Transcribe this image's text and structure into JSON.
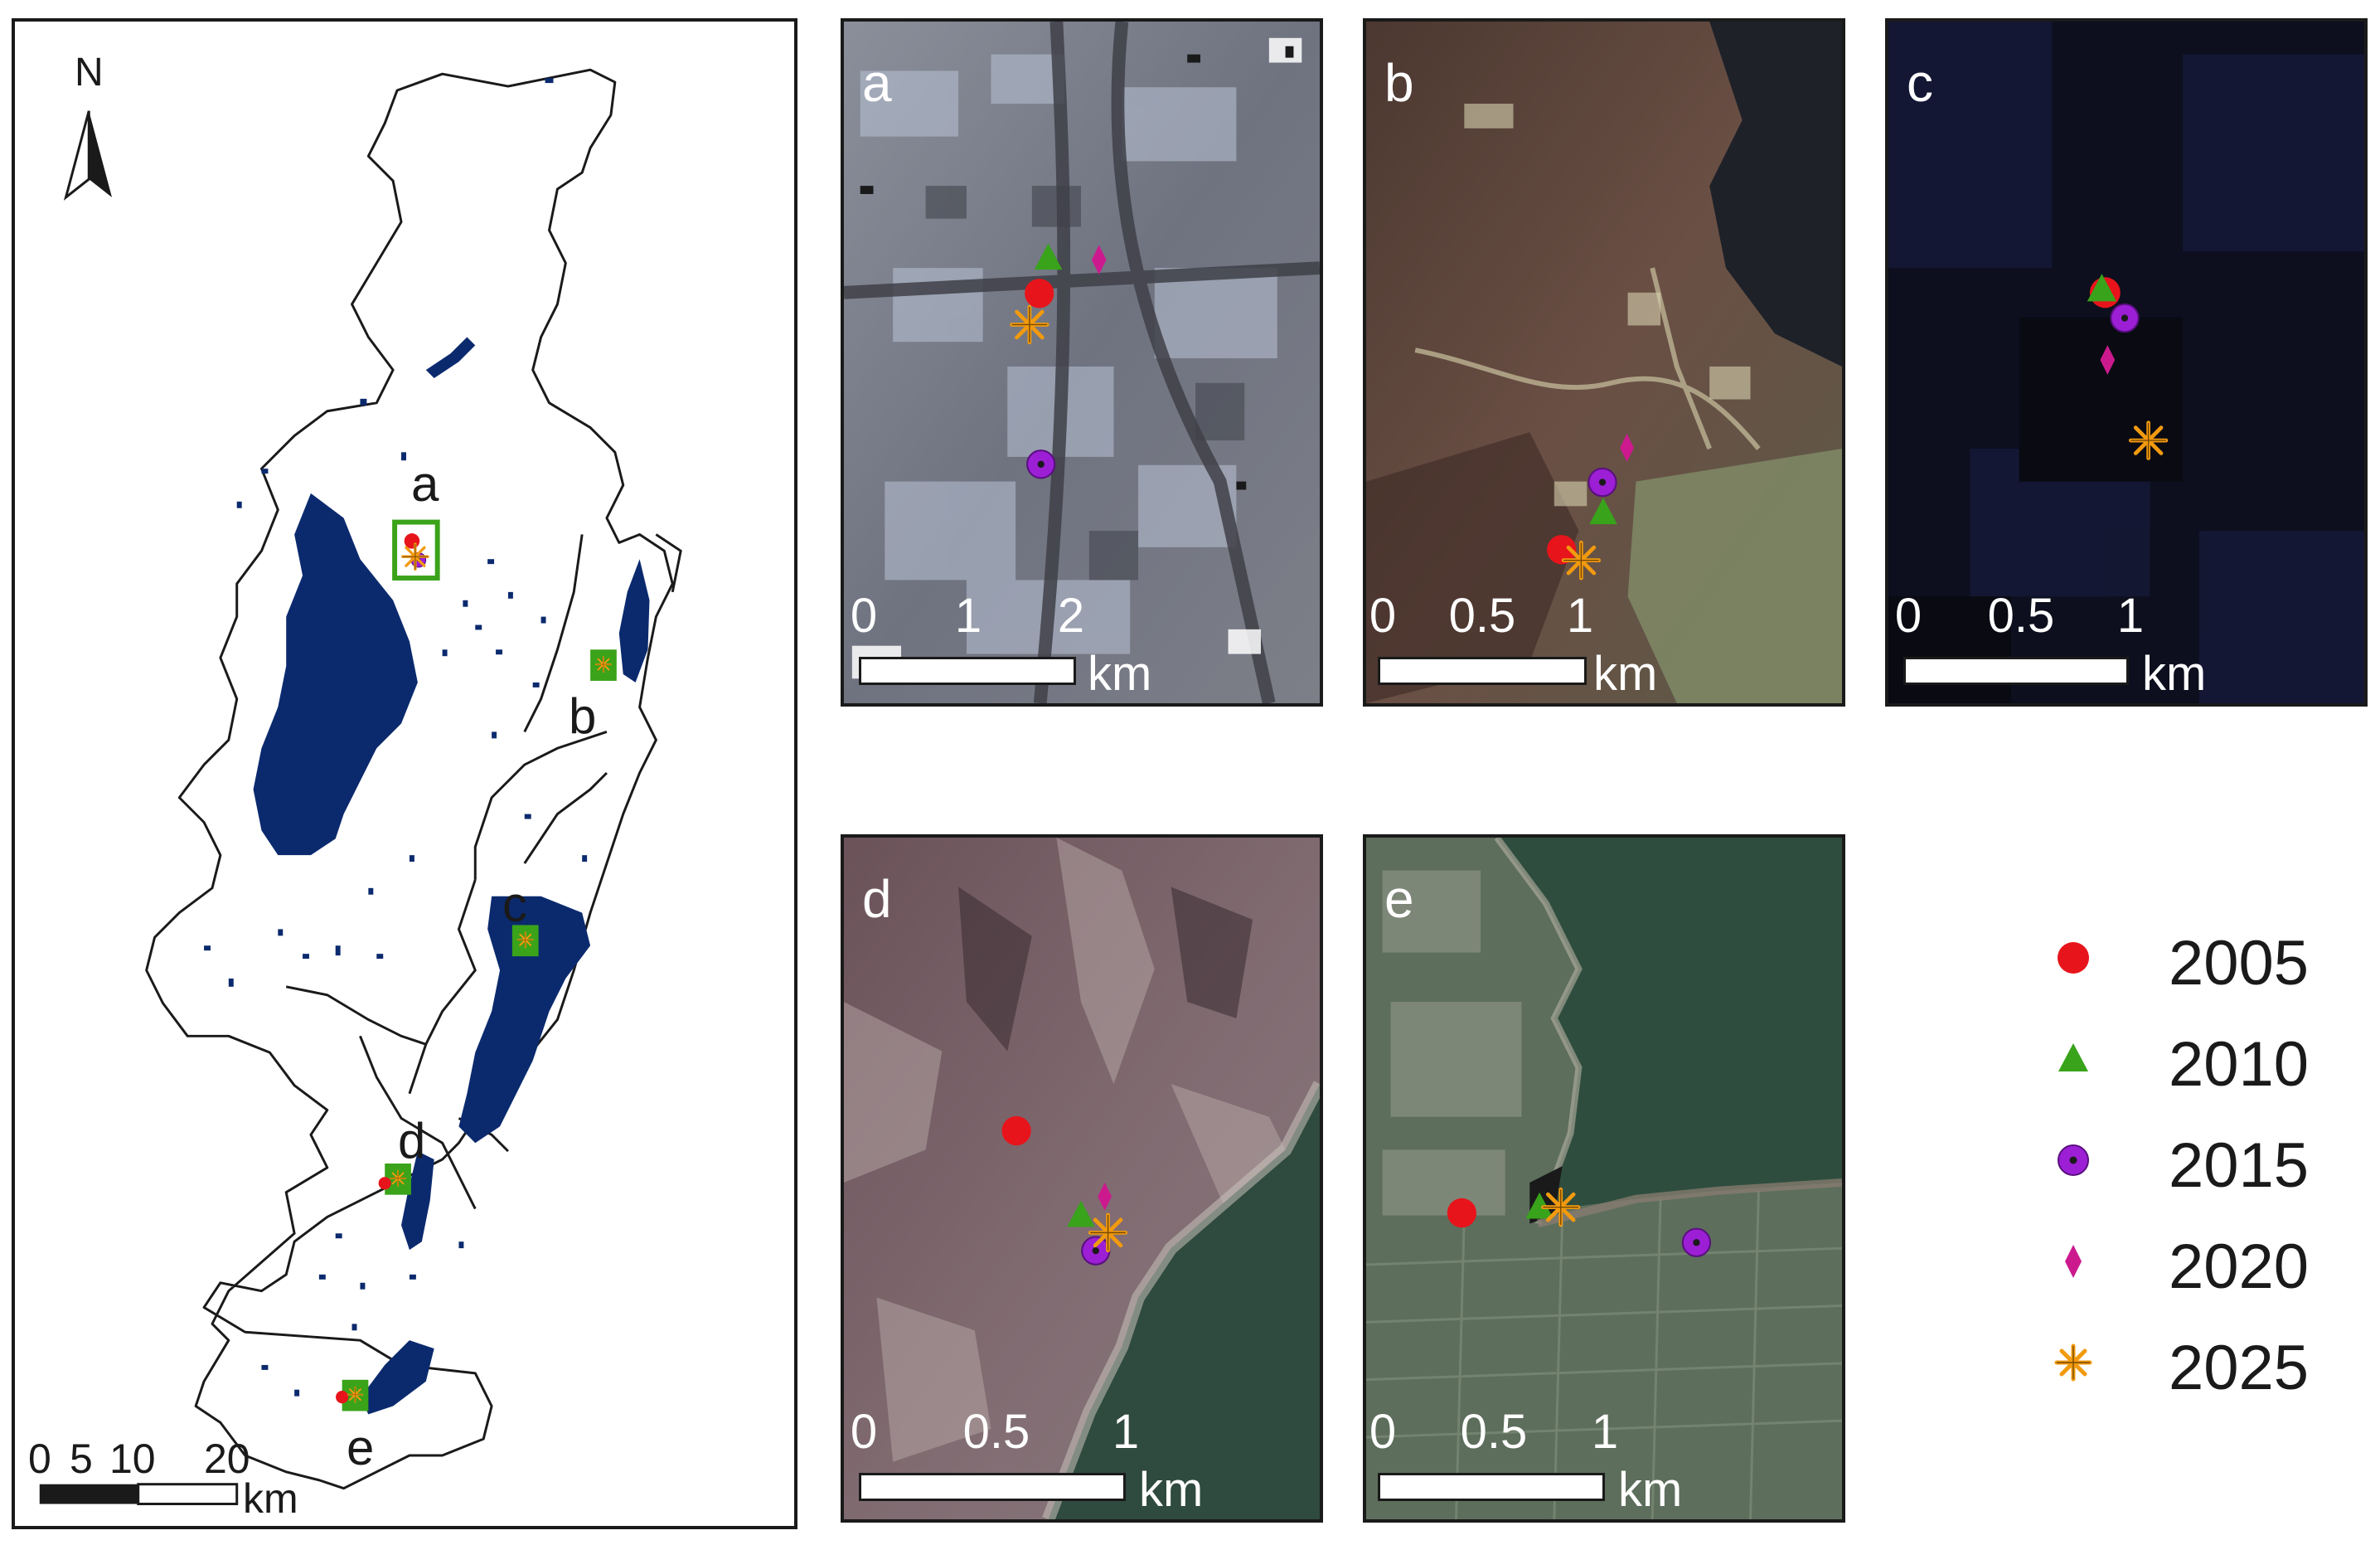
{
  "overview": {
    "north_label": "N",
    "site_labels": [
      "a",
      "b",
      "c",
      "d",
      "e"
    ],
    "scale_ticks": [
      "0",
      "5",
      "10",
      "20"
    ],
    "scale_unit": "km",
    "colors": {
      "lake": "#0b2a6e",
      "box": "#3aa31a",
      "outline": "#1a1a1a"
    }
  },
  "panels": [
    {
      "id": "a",
      "label": "a",
      "ticks": [
        "0",
        "1",
        "2"
      ],
      "unit": "km"
    },
    {
      "id": "b",
      "label": "b",
      "ticks": [
        "0",
        "0.5",
        "1"
      ],
      "unit": "km"
    },
    {
      "id": "c",
      "label": "c",
      "ticks": [
        "0",
        "0.5",
        "1"
      ],
      "unit": "km"
    },
    {
      "id": "d",
      "label": "d",
      "ticks": [
        "0",
        "0.5",
        "1"
      ],
      "unit": "km"
    },
    {
      "id": "e",
      "label": "e",
      "ticks": [
        "0",
        "0.5",
        "1"
      ],
      "unit": "km"
    }
  ],
  "legend": {
    "items": [
      {
        "year": "2005",
        "marker": "red-circle",
        "color": "#e8141b"
      },
      {
        "year": "2010",
        "marker": "green-triangle",
        "color": "#38a31b"
      },
      {
        "year": "2015",
        "marker": "purple-circle-dot",
        "color": "#9c1fd6"
      },
      {
        "year": "2020",
        "marker": "magenta-diamond",
        "color": "#cc1a8e"
      },
      {
        "year": "2025",
        "marker": "orange-asterisk",
        "color": "#f29a0f"
      }
    ]
  }
}
